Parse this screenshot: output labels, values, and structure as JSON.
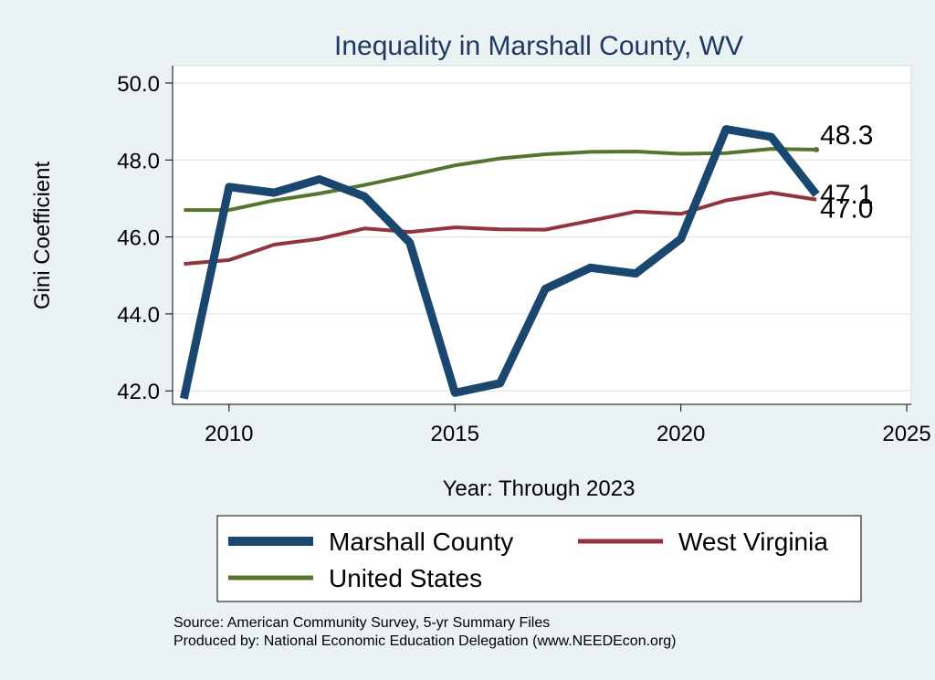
{
  "chart_data": {
    "type": "line",
    "title": "Inequality in Marshall County, WV",
    "xlabel": "Year: Through 2023",
    "ylabel": "Gini Coefficient",
    "xlim": [
      2008.75,
      2025.1
    ],
    "ylim": [
      41.65,
      50.45
    ],
    "x_ticks": [
      2010,
      2015,
      2020,
      2025
    ],
    "y_ticks": [
      42,
      44,
      46,
      48,
      50
    ],
    "y_tick_labels": [
      "42.0",
      "44.0",
      "46.0",
      "48.0",
      "50.0"
    ],
    "x": [
      2009,
      2010,
      2011,
      2012,
      2013,
      2014,
      2015,
      2016,
      2017,
      2018,
      2019,
      2020,
      2021,
      2022,
      2023
    ],
    "series": [
      {
        "name": "Marshall County",
        "color": "#1a476f",
        "values": [
          41.8,
          47.3,
          47.15,
          47.5,
          47.05,
          45.85,
          41.95,
          42.2,
          44.65,
          45.2,
          45.05,
          45.95,
          48.8,
          48.6,
          47.1
        ],
        "end_label": "47.1"
      },
      {
        "name": "West Virginia",
        "color": "#90353b",
        "values": [
          45.3,
          45.4,
          45.8,
          45.95,
          46.22,
          46.13,
          46.25,
          46.2,
          46.19,
          46.42,
          46.66,
          46.6,
          46.95,
          47.15,
          46.97
        ],
        "end_label": "47.0"
      },
      {
        "name": "United States",
        "color": "#55752f",
        "values": [
          46.7,
          46.7,
          46.95,
          47.13,
          47.35,
          47.6,
          47.86,
          48.04,
          48.15,
          48.21,
          48.22,
          48.16,
          48.18,
          48.29,
          48.27
        ],
        "end_label": "48.3"
      }
    ],
    "legend_position": "bottom"
  },
  "footer": {
    "source": "Source: American Community Survey, 5-yr Summary Files",
    "produced_by": "Produced by: National Economic Education Delegation (www.NEEDEcon.org)"
  }
}
